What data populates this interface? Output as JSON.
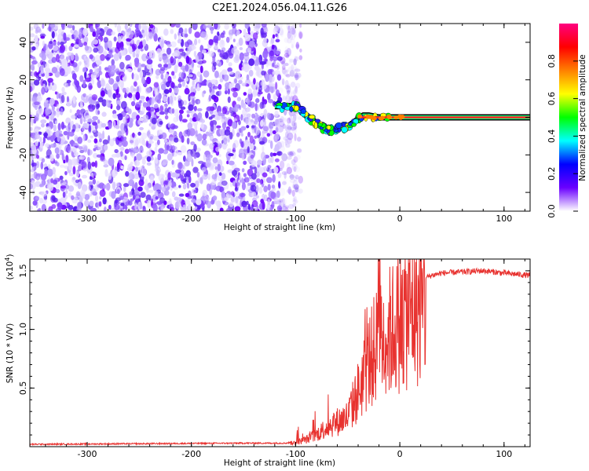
{
  "title": "C2E1.2024.056.04.11.G26",
  "chart_data": [
    {
      "type": "heatmap",
      "name": "spectrogram",
      "xlabel": "Height of straight line (km)",
      "ylabel": "Frequency (Hz)",
      "xlim": [
        -355,
        125
      ],
      "ylim": [
        -50,
        50
      ],
      "xticks": [
        -300,
        -200,
        -100,
        0,
        100
      ],
      "xtick_labels": [
        "-300",
        "-200",
        "-100",
        "0",
        "100"
      ],
      "yticks": [
        -40,
        -20,
        0,
        20,
        40
      ],
      "ytick_labels": [
        "-40",
        "-20",
        "0",
        "20",
        "40"
      ],
      "noise_region_x": [
        -355,
        -100
      ],
      "signal_trace": {
        "x": [
          -120,
          -110,
          -100,
          -95,
          -90,
          -85,
          -80,
          -75,
          -70,
          -65,
          -60,
          -55,
          -50,
          -45,
          -40,
          -35,
          -30,
          -20,
          -10,
          0,
          125
        ],
        "y": [
          6,
          6,
          6,
          4,
          1,
          -1,
          -3,
          -5,
          -6,
          -7,
          -6,
          -5,
          -5,
          -3,
          -1,
          1,
          1,
          0,
          0,
          0,
          0
        ]
      },
      "colorbar": {
        "label": "Normalized spectral amplitude",
        "range": [
          0,
          1
        ],
        "ticks": [
          0.0,
          0.2,
          0.4,
          0.6,
          0.8
        ],
        "tick_labels": [
          "0.0",
          "0.2",
          "0.4",
          "0.6",
          "0.8"
        ],
        "colors": [
          "#ffffff",
          "#6a00ff",
          "#0000ff",
          "#00ffff",
          "#00ff00",
          "#ffff00",
          "#ff8000",
          "#ff0000",
          "#ff0080"
        ]
      }
    },
    {
      "type": "line",
      "name": "snr",
      "xlabel": "Height of straight line (km)",
      "ylabel": "SNR (10 * V/V)",
      "y_multiplier": "(x10",
      "y_multiplier_exp": "4",
      "y_multiplier_close": ")",
      "xlim": [
        -355,
        125
      ],
      "ylim": [
        0,
        1.6
      ],
      "xticks": [
        -300,
        -200,
        -100,
        0,
        100
      ],
      "xtick_labels": [
        "-300",
        "-200",
        "-100",
        "0",
        "100"
      ],
      "yticks": [
        0.5,
        1.0,
        1.5
      ],
      "ytick_labels": [
        "0.5",
        "1.0",
        "1.5"
      ],
      "color": "#e8322f",
      "envelope": {
        "x": [
          -355,
          -150,
          -110,
          -100,
          -90,
          -80,
          -70,
          -60,
          -50,
          -40,
          -30,
          -20,
          -15,
          -10,
          -5,
          0,
          10,
          20,
          30,
          40,
          60,
          80,
          100,
          125
        ],
        "y": [
          0.02,
          0.03,
          0.03,
          0.04,
          0.07,
          0.12,
          0.2,
          0.25,
          0.3,
          0.55,
          0.85,
          1.05,
          1.1,
          1.15,
          1.2,
          1.28,
          1.35,
          1.42,
          1.46,
          1.48,
          1.49,
          1.5,
          1.48,
          1.46
        ]
      }
    }
  ]
}
